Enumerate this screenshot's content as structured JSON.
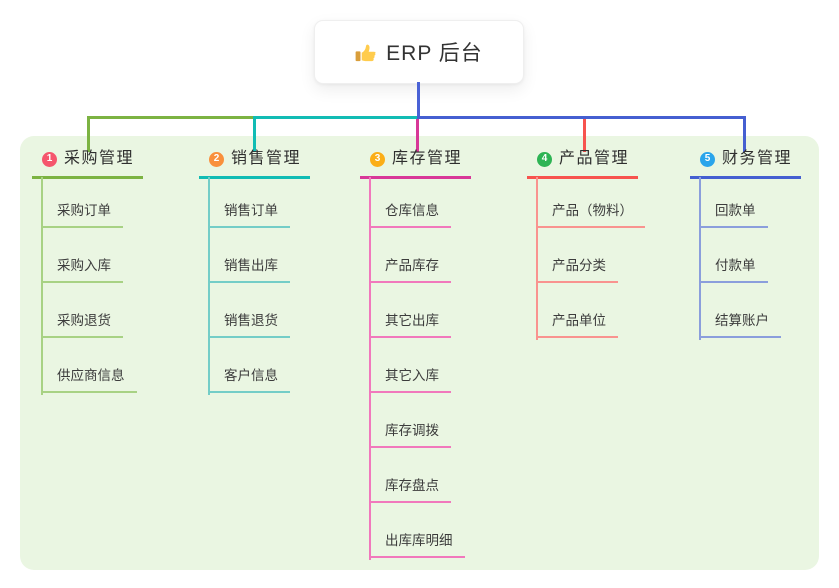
{
  "root": {
    "label": "ERP 后台",
    "icon": "thumbs-up-icon"
  },
  "colors": {
    "panel_bg": "#EAF6E2",
    "root_line": "#4A62D6",
    "header_text": "#2F2F2F",
    "child_text": "#3C3C3C"
  },
  "branches": [
    {
      "badge": "1",
      "label": "采购管理",
      "color": "#7CB342",
      "light_color": "#A8D284",
      "badge_color": "#F5566D",
      "children": [
        "采购订单",
        "采购入库",
        "采购退货",
        "供应商信息"
      ]
    },
    {
      "badge": "2",
      "label": "销售管理",
      "color": "#11BCB4",
      "light_color": "#74CDC7",
      "badge_color": "#F9903C",
      "children": [
        "销售订单",
        "销售出库",
        "销售退货",
        "客户信息"
      ]
    },
    {
      "badge": "3",
      "label": "库存管理",
      "color": "#D83898",
      "light_color": "#F178BC",
      "badge_color": "#FBAE17",
      "children": [
        "仓库信息",
        "产品库存",
        "其它出库",
        "其它入库",
        "库存调拨",
        "库存盘点",
        "出库库明细"
      ]
    },
    {
      "badge": "4",
      "label": "产品管理",
      "color": "#F7534E",
      "light_color": "#F9938F",
      "badge_color": "#2EB454",
      "children": [
        "产品（物料）",
        "产品分类",
        "产品单位"
      ]
    },
    {
      "badge": "5",
      "label": "财务管理",
      "color": "#455FD1",
      "light_color": "#8B9EDC",
      "badge_color": "#2AA5EB",
      "children": [
        "回款单",
        "付款单",
        "结算账户"
      ]
    }
  ]
}
